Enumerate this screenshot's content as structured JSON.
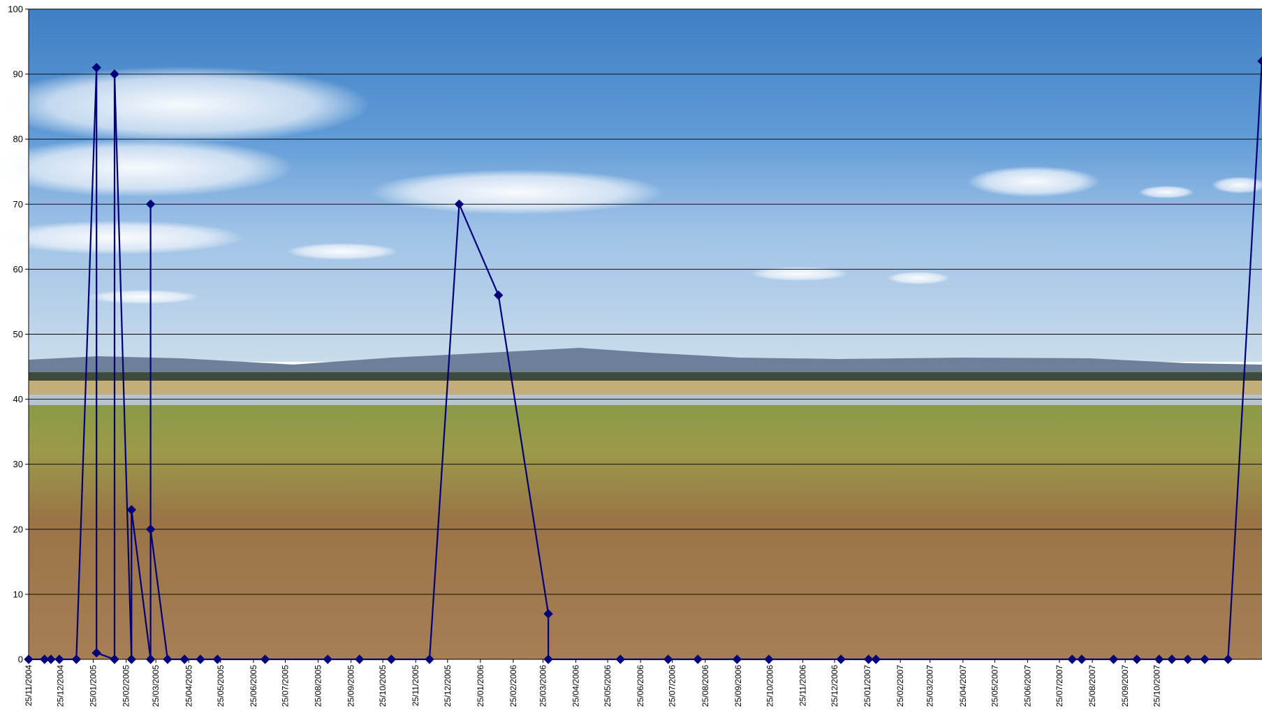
{
  "chart_data": {
    "type": "line",
    "title": "",
    "xlabel": "",
    "ylabel": "",
    "ylim": [
      0,
      100
    ],
    "y_ticks": [
      0,
      10,
      20,
      30,
      40,
      50,
      60,
      70,
      80,
      90,
      100
    ],
    "grid": true,
    "background": "landscape photograph: grassland with distant hills under blue sky with clouds",
    "x_tick_labels": [
      "25/11/2004",
      "25/12/2004",
      "25/01/2005",
      "25/02/2005",
      "25/03/2005",
      "25/04/2005",
      "25/05/2005",
      "25/06/2005",
      "25/07/2005",
      "25/08/2005",
      "25/09/2005",
      "25/10/2005",
      "25/11/2005",
      "25/12/2005",
      "25/01/2006",
      "25/02/2006",
      "25/03/2006",
      "25/04/2006",
      "25/05/2006",
      "25/06/2006",
      "25/07/2006",
      "25/08/2006",
      "25/09/2006",
      "25/10/2006",
      "25/11/2006",
      "25/12/2006",
      "25/01/2007",
      "25/02/2007",
      "25/03/2007",
      "25/04/2007",
      "25/05/2007",
      "25/06/2007",
      "25/07/2007",
      "25/08/2007",
      "25/09/2007",
      "25/10/2007"
    ],
    "series": [
      {
        "color": "#00007a",
        "marker": "diamond",
        "points": [
          {
            "x": "2004-11-25",
            "y": 0
          },
          {
            "x": "2004-12-10",
            "y": 0
          },
          {
            "x": "2004-12-16",
            "y": 0
          },
          {
            "x": "2004-12-24",
            "y": 0
          },
          {
            "x": "2005-01-09",
            "y": 0
          },
          {
            "x": "2005-01-28",
            "y": 91
          },
          {
            "x": "2005-01-28",
            "y": 1
          },
          {
            "x": "2005-02-14",
            "y": 0
          },
          {
            "x": "2005-02-14",
            "y": 90
          },
          {
            "x": "2005-03-02",
            "y": 0
          },
          {
            "x": "2005-03-02",
            "y": 23
          },
          {
            "x": "2005-03-20",
            "y": 0
          },
          {
            "x": "2005-03-20",
            "y": 70
          },
          {
            "x": "2005-03-20",
            "y": 20
          },
          {
            "x": "2005-04-05",
            "y": 0
          },
          {
            "x": "2005-04-21",
            "y": 0
          },
          {
            "x": "2005-05-06",
            "y": 0
          },
          {
            "x": "2005-05-22",
            "y": 0
          },
          {
            "x": "2005-07-06",
            "y": 0
          },
          {
            "x": "2005-09-03",
            "y": 0
          },
          {
            "x": "2005-10-03",
            "y": 0
          },
          {
            "x": "2005-11-02",
            "y": 0
          },
          {
            "x": "2005-12-08",
            "y": 0
          },
          {
            "x": "2006-01-05",
            "y": 70
          },
          {
            "x": "2006-02-11",
            "y": 56
          },
          {
            "x": "2006-03-30",
            "y": 7
          },
          {
            "x": "2006-03-30",
            "y": 0
          },
          {
            "x": "2006-06-06",
            "y": 0
          },
          {
            "x": "2006-07-21",
            "y": 0
          },
          {
            "x": "2006-08-18",
            "y": 0
          },
          {
            "x": "2006-09-24",
            "y": 0
          },
          {
            "x": "2006-10-24",
            "y": 0
          },
          {
            "x": "2006-12-31",
            "y": 0
          },
          {
            "x": "2007-01-26",
            "y": 0
          },
          {
            "x": "2007-02-02",
            "y": 0
          },
          {
            "x": "2007-08-06",
            "y": 0
          },
          {
            "x": "2007-08-15",
            "y": 0
          },
          {
            "x": "2007-09-14",
            "y": 0
          },
          {
            "x": "2007-10-06",
            "y": 0
          },
          {
            "x": "2007-10-27",
            "y": 0
          },
          {
            "x": "2007-11-08",
            "y": 0
          },
          {
            "x": "2007-11-23",
            "y": 0
          },
          {
            "x": "2007-12-09",
            "y": 0
          },
          {
            "x": "2007-12-31",
            "y": 0
          },
          {
            "x": "2008-02-01",
            "y": 92
          }
        ]
      }
    ]
  }
}
